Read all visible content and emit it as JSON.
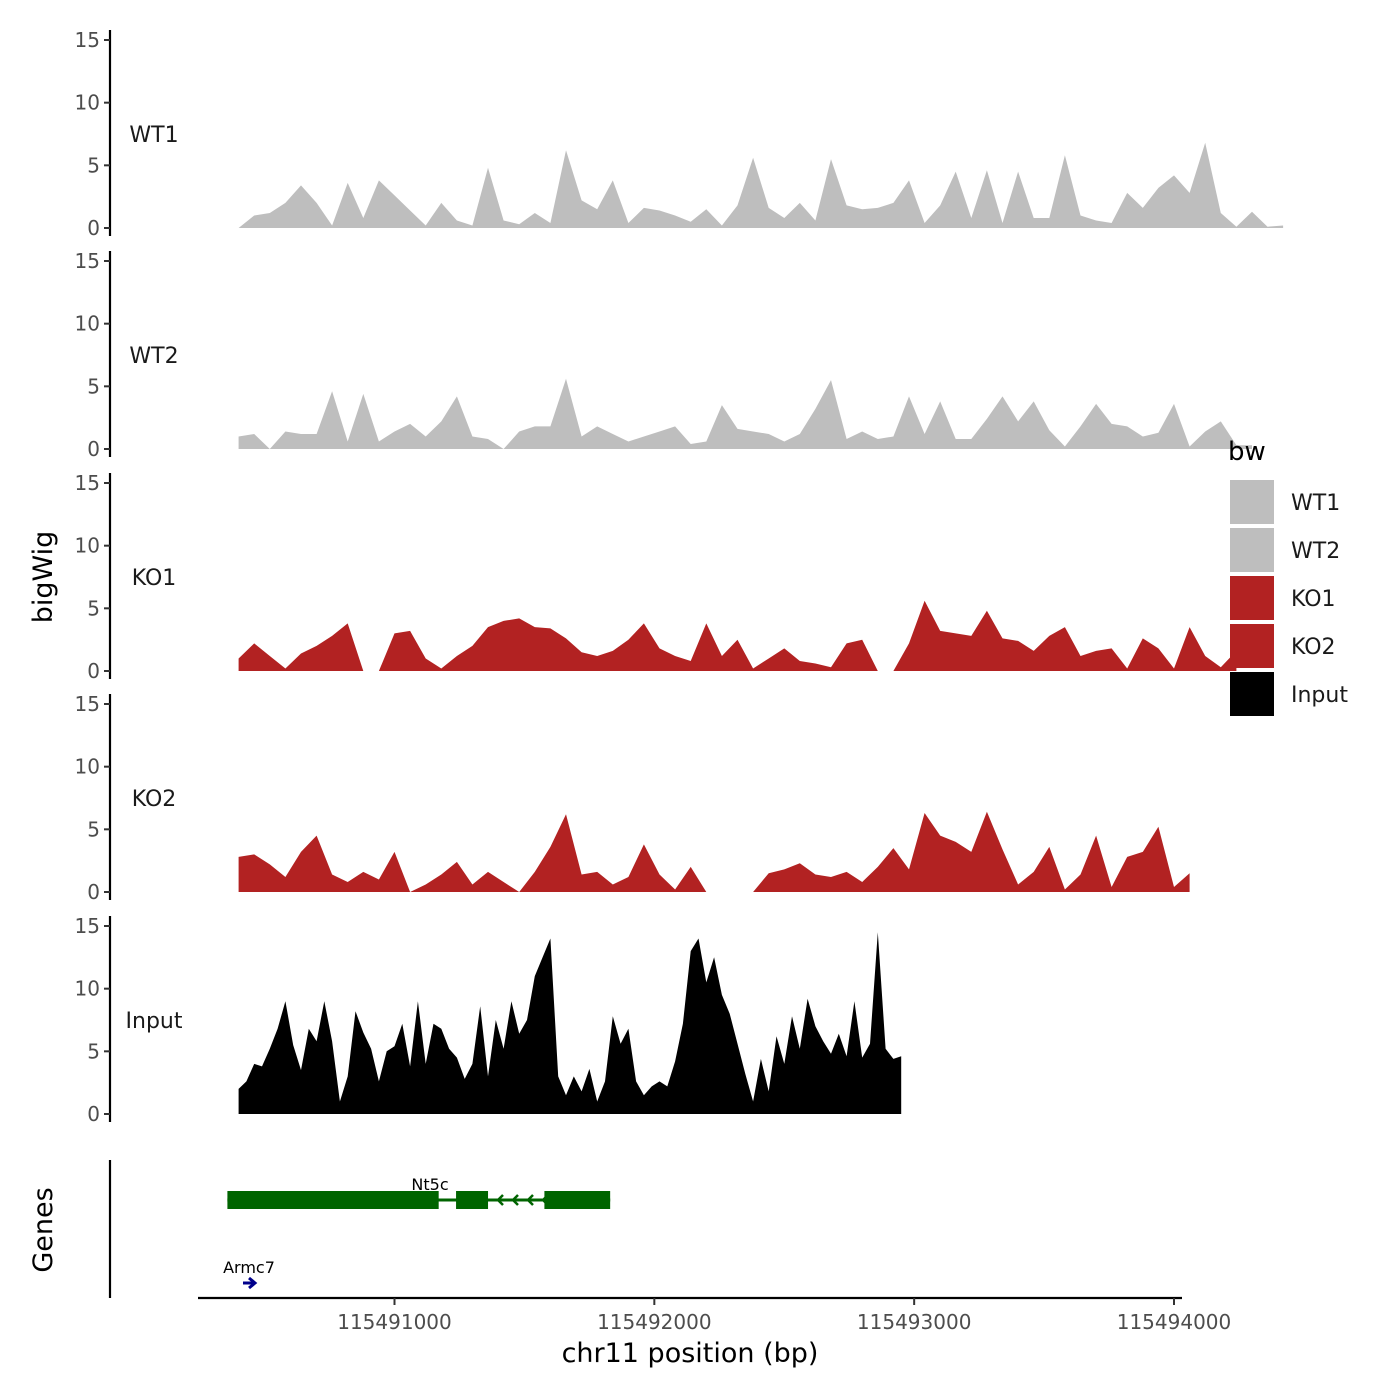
{
  "chart_data": {
    "type": "area",
    "ylabel": "bigWig",
    "genes_label": "Genes",
    "xlabel": "chr11 position (bp)",
    "xlim": [
      115490200,
      115494030
    ],
    "x_ticks": [
      115491000,
      115492000,
      115493000,
      115494000
    ],
    "x_tick_labels": [
      "115491000",
      "115492000",
      "115493000",
      "115494000"
    ],
    "ylim": [
      0,
      15
    ],
    "y_ticks": [
      0,
      5,
      10,
      15
    ],
    "y_tick_labels": [
      "0",
      "5",
      "10",
      "15"
    ],
    "legend": {
      "title": "bw",
      "position": "right",
      "entries": [
        {
          "label": "WT1",
          "color": "#bebebe"
        },
        {
          "label": "WT2",
          "color": "#bebebe"
        },
        {
          "label": "KO1",
          "color": "#b22222"
        },
        {
          "label": "KO2",
          "color": "#b22222"
        },
        {
          "label": "Input",
          "color": "#000000"
        }
      ]
    },
    "series": [
      {
        "name": "WT1",
        "color": "#bebebe",
        "start": 115490400,
        "step": 60,
        "values": [
          0,
          1,
          1.2,
          2,
          3.4,
          2,
          0.2,
          3.6,
          0.8,
          3.8,
          2.6,
          1.4,
          0.2,
          2,
          0.6,
          0.2,
          4.8,
          0.6,
          0.3,
          1.2,
          0.4,
          6.2,
          2.2,
          1.5,
          3.8,
          0.4,
          1.6,
          1.4,
          1,
          0.5,
          1.5,
          0.2,
          1.8,
          5.6,
          1.6,
          0.8,
          2,
          0.6,
          5.5,
          1.8,
          1.5,
          1.6,
          2,
          3.8,
          0.4,
          1.8,
          4.5,
          0.8,
          4.6,
          0.4,
          4.5,
          0.8,
          0.8,
          5.8,
          1,
          0.6,
          0.4,
          2.8,
          1.6,
          3.2,
          4.2,
          2.8,
          6.8,
          1.2,
          0.1,
          1.3,
          0.1,
          0.2
        ]
      },
      {
        "name": "WT2",
        "color": "#bebebe",
        "start": 115490400,
        "step": 60,
        "values": [
          1,
          1.2,
          0,
          1.4,
          1.2,
          1.2,
          4.6,
          0.6,
          4.4,
          0.6,
          1.4,
          2,
          1,
          2.2,
          4.2,
          1,
          0.8,
          0,
          1.4,
          1.8,
          1.8,
          5.6,
          1,
          1.8,
          1.2,
          0.6,
          1,
          1.4,
          1.8,
          0.4,
          0.6,
          3.5,
          1.6,
          1.4,
          1.2,
          0.6,
          1.2,
          3.2,
          5.5,
          0.8,
          1.4,
          0.8,
          1,
          4.2,
          1.2,
          3.8,
          0.8,
          0.8,
          2.4,
          4.2,
          2.2,
          3.8,
          1.5,
          0.2,
          1.8,
          3.6,
          2,
          1.8,
          1,
          1.3,
          3.6,
          0.2,
          1.4,
          2.2,
          0.3,
          0.3
        ]
      },
      {
        "name": "KO1",
        "color": "#b22222",
        "start": 115490400,
        "step": 60,
        "values": [
          1,
          2.2,
          1.2,
          0.2,
          1.4,
          2,
          2.8,
          3.8,
          0,
          0,
          3,
          3.2,
          1,
          0.2,
          1.2,
          2,
          3.5,
          4,
          4.2,
          3.5,
          3.4,
          2.6,
          1.5,
          1.2,
          1.6,
          2.5,
          3.8,
          1.8,
          1.2,
          0.8,
          3.8,
          1.2,
          2.5,
          0.2,
          1,
          1.8,
          0.8,
          0.6,
          0.3,
          2.2,
          2.5,
          0,
          0,
          2.2,
          5.6,
          3.2,
          3,
          2.8,
          4.8,
          2.6,
          2.4,
          1.6,
          2.8,
          3.5,
          1.2,
          1.6,
          1.8,
          0.2,
          2.6,
          1.8,
          0.2,
          3.5,
          1.2,
          0.3,
          1.6
        ]
      },
      {
        "name": "KO2",
        "color": "#b22222",
        "start": 115490400,
        "step": 60,
        "values": [
          2.8,
          3,
          2.2,
          1.2,
          3.2,
          4.5,
          1.4,
          0.8,
          1.6,
          1,
          3.2,
          0,
          0.6,
          1.4,
          2.4,
          0.6,
          1.6,
          0.8,
          0,
          1.6,
          3.6,
          6.2,
          1.4,
          1.6,
          0.6,
          1.2,
          3.8,
          1.4,
          0.2,
          2,
          0,
          0,
          0,
          0,
          1.5,
          1.8,
          2.3,
          1.4,
          1.2,
          1.6,
          0.8,
          2,
          3.5,
          1.8,
          6.3,
          4.5,
          4,
          3.2,
          6.4,
          3.4,
          0.6,
          1.6,
          3.6,
          0.2,
          1.4,
          4.5,
          0.4,
          2.8,
          3.2,
          5.2,
          0.4,
          1.5
        ]
      },
      {
        "name": "Input",
        "color": "#000000",
        "start": 115490400,
        "step": 30,
        "values": [
          2,
          2.6,
          4,
          3.8,
          5.2,
          6.8,
          9,
          5.5,
          3.5,
          6.8,
          5.8,
          9,
          5.8,
          1,
          3,
          8.2,
          6.5,
          5.2,
          2.6,
          5,
          5.4,
          7.2,
          3.8,
          9,
          4,
          7.2,
          6.8,
          5.2,
          4.5,
          2.8,
          4,
          8.6,
          3,
          7.5,
          5.2,
          9,
          6.4,
          7.5,
          11,
          12.5,
          14,
          3,
          1.5,
          3,
          1.8,
          3.6,
          1,
          2.6,
          7.8,
          5.6,
          6.8,
          2.6,
          1.5,
          2.2,
          2.6,
          2.2,
          4.2,
          7.2,
          13,
          14,
          10.5,
          12.5,
          9.5,
          8,
          5.6,
          3.2,
          1,
          4.4,
          1.8,
          6.2,
          4,
          7.8,
          5.2,
          9.2,
          7,
          5.8,
          4.8,
          6.4,
          4.6,
          9,
          4.5,
          5.6,
          14.5,
          5.2,
          4.4,
          4.6
        ]
      }
    ],
    "genes": [
      {
        "name": "Nt5c",
        "strand": "-",
        "start": 115490380,
        "end": 115491830,
        "exons": [
          [
            115490380,
            115491170
          ],
          [
            115491260,
            115491360
          ],
          [
            115491600,
            115491830
          ]
        ],
        "color": "#006400",
        "row": 1
      },
      {
        "name": "Armc7",
        "strand": "+",
        "start": 115490380,
        "end": 115490420,
        "exons": [],
        "color": "#00008b",
        "row": 2
      }
    ]
  }
}
